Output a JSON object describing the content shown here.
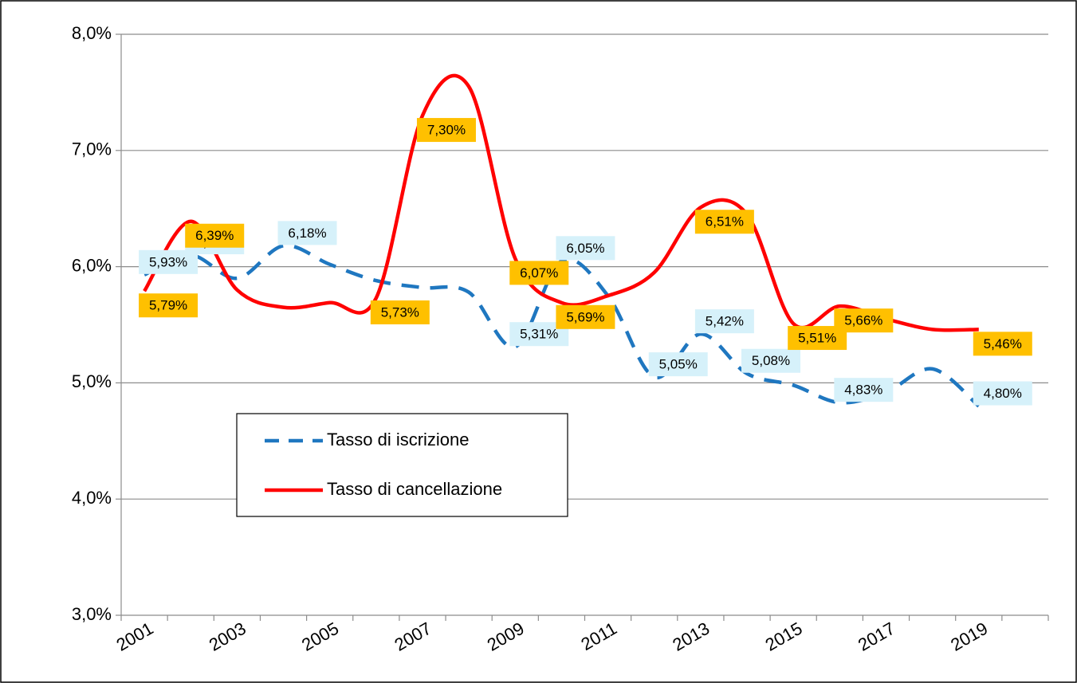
{
  "chart_data": {
    "type": "line",
    "categories": [
      "2001",
      null,
      "2003",
      null,
      "2005",
      null,
      "2007",
      null,
      "2009",
      null,
      "2011",
      null,
      "2013",
      null,
      "2015",
      null,
      "2017",
      null,
      "2019",
      null
    ],
    "series": [
      {
        "name": "Tasso di iscrizione",
        "color": "#1f77c0",
        "dashed": true,
        "values": [
          5.93,
          6.1,
          5.9,
          6.18,
          6.02,
          5.88,
          5.82,
          5.78,
          5.31,
          6.05,
          5.75,
          5.05,
          5.42,
          5.08,
          4.98,
          4.83,
          4.92,
          5.12,
          4.8,
          null
        ],
        "value_labels": [
          "5,93%",
          "6,10%",
          null,
          "6,18%",
          null,
          null,
          null,
          null,
          "5,31%",
          "6,05%",
          null,
          "5,05%",
          "5,42%",
          "5,08%",
          null,
          "4,83%",
          null,
          null,
          "4,80%",
          null
        ],
        "label_color": "#d6f1fa"
      },
      {
        "name": "Tasso di cancellazione",
        "color": "#ff0000",
        "dashed": false,
        "values": [
          5.79,
          6.39,
          5.8,
          5.65,
          5.69,
          5.73,
          7.3,
          7.55,
          6.07,
          5.69,
          5.75,
          5.95,
          6.51,
          6.45,
          5.51,
          5.66,
          5.55,
          5.46,
          5.46,
          null
        ],
        "value_labels": [
          "5,79%",
          "6,39%",
          null,
          null,
          null,
          "5,73%",
          "7,30%",
          null,
          "6,07%",
          "5,69%",
          null,
          null,
          "6,51%",
          null,
          "5,51%",
          "5,66%",
          null,
          null,
          "5,46%",
          null
        ],
        "label_color": "#ffc000"
      }
    ],
    "ylim": [
      3,
      8
    ],
    "yticks": [
      {
        "value": 3,
        "label": "3,0%"
      },
      {
        "value": 4,
        "label": "4,0%"
      },
      {
        "value": 5,
        "label": "5,0%"
      },
      {
        "value": 6,
        "label": "6,0%"
      },
      {
        "value": 7,
        "label": "7,0%"
      },
      {
        "value": 8,
        "label": "8,0%"
      }
    ],
    "grid": true
  }
}
